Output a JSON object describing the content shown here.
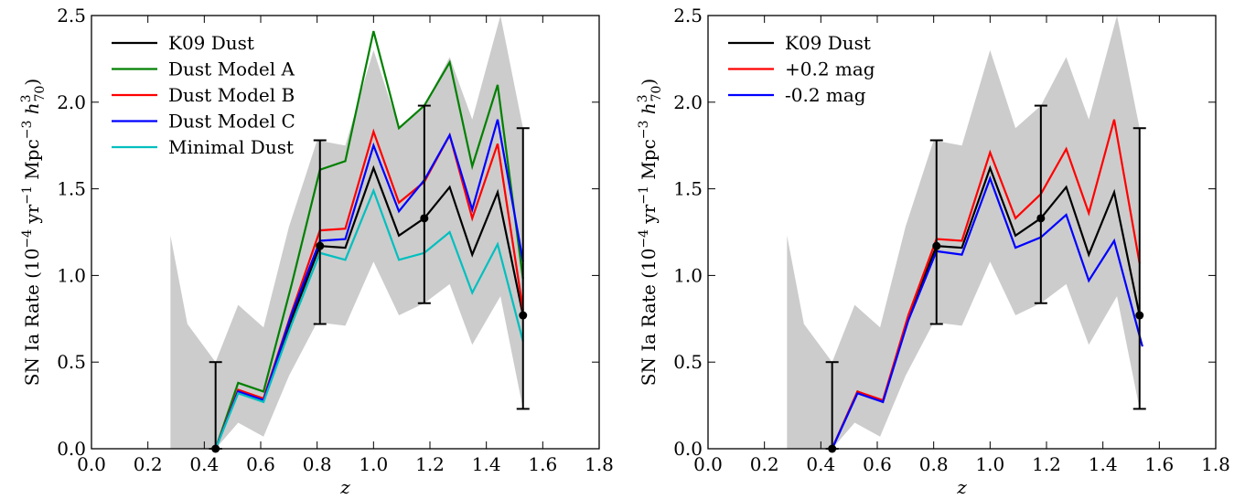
{
  "chart_data": [
    {
      "type": "line",
      "xlabel": "z",
      "ylabel_main": "SN Ia Rate (10",
      "ylabel_exp1": "−4",
      "ylabel_mid1": " yr",
      "ylabel_exp2": "−1",
      "ylabel_mid2": " Mpc",
      "ylabel_exp3": "−3",
      "ylabel_h": " h",
      "ylabel_hsup": "3",
      "ylabel_hsub": "70",
      "ylabel_close": ")",
      "xlim": [
        0.0,
        1.8
      ],
      "ylim": [
        0.0,
        2.5
      ],
      "xticks": [
        "0.0",
        "0.2",
        "0.4",
        "0.6",
        "0.8",
        "1.0",
        "1.2",
        "1.4",
        "1.6",
        "1.8"
      ],
      "yticks": [
        "0.0",
        "0.5",
        "1.0",
        "1.5",
        "2.0",
        "2.5"
      ],
      "legend_position": "upper-left",
      "band": {
        "x": [
          0.28,
          0.34,
          0.44,
          0.52,
          0.61,
          0.7,
          0.8,
          0.9,
          1.0,
          1.09,
          1.18,
          1.27,
          1.35,
          1.45,
          1.53
        ],
        "upper": [
          1.23,
          0.72,
          0.5,
          0.83,
          0.7,
          1.28,
          1.78,
          1.75,
          2.3,
          1.85,
          1.98,
          2.26,
          1.9,
          2.5,
          1.85
        ],
        "lower": [
          0.0,
          0.0,
          0.0,
          0.15,
          0.07,
          0.42,
          0.73,
          0.71,
          1.08,
          0.77,
          0.84,
          0.95,
          0.6,
          0.88,
          0.23
        ]
      },
      "series": [
        {
          "name": "K09 Dust",
          "color": "#000000",
          "x": [
            0.44,
            0.52,
            0.61,
            0.71,
            0.81,
            0.9,
            1.0,
            1.09,
            1.18,
            1.27,
            1.35,
            1.44,
            1.53
          ],
          "y": [
            0.0,
            0.33,
            0.28,
            0.75,
            1.17,
            1.16,
            1.62,
            1.23,
            1.33,
            1.51,
            1.12,
            1.48,
            0.77
          ]
        },
        {
          "name": "Dust Model A",
          "color": "#008000",
          "x": [
            0.44,
            0.52,
            0.61,
            0.71,
            0.81,
            0.9,
            1.0,
            1.09,
            1.18,
            1.27,
            1.35,
            1.44,
            1.53
          ],
          "y": [
            0.0,
            0.38,
            0.33,
            0.95,
            1.61,
            1.66,
            2.41,
            1.85,
            1.98,
            2.23,
            1.63,
            2.1,
            0.98
          ]
        },
        {
          "name": "Dust Model B",
          "color": "#ff0000",
          "x": [
            0.44,
            0.52,
            0.61,
            0.71,
            0.81,
            0.9,
            1.0,
            1.09,
            1.18,
            1.27,
            1.35,
            1.44,
            1.53
          ],
          "y": [
            0.0,
            0.34,
            0.29,
            0.79,
            1.26,
            1.27,
            1.83,
            1.42,
            1.54,
            1.81,
            1.33,
            1.76,
            0.8
          ]
        },
        {
          "name": "Dust Model C",
          "color": "#0000ff",
          "x": [
            0.44,
            0.52,
            0.61,
            0.71,
            0.81,
            0.9,
            1.0,
            1.09,
            1.18,
            1.27,
            1.35,
            1.44,
            1.53
          ],
          "y": [
            0.0,
            0.33,
            0.28,
            0.78,
            1.2,
            1.21,
            1.75,
            1.37,
            1.55,
            1.81,
            1.38,
            1.9,
            1.08
          ]
        },
        {
          "name": "Minimal Dust",
          "color": "#00bfbf",
          "x": [
            0.44,
            0.52,
            0.61,
            0.71,
            0.81,
            0.9,
            1.0,
            1.09,
            1.18,
            1.27,
            1.35,
            1.44,
            1.53
          ],
          "y": [
            0.0,
            0.32,
            0.27,
            0.72,
            1.13,
            1.09,
            1.49,
            1.09,
            1.13,
            1.25,
            0.9,
            1.18,
            0.62
          ]
        }
      ],
      "points": {
        "x": [
          0.44,
          0.81,
          1.18,
          1.53
        ],
        "y": [
          0.0,
          1.17,
          1.33,
          0.77
        ],
        "err_low": [
          0.0,
          0.72,
          0.84,
          0.23
        ],
        "err_high": [
          0.5,
          1.78,
          1.98,
          1.85
        ]
      }
    },
    {
      "type": "line",
      "xlabel": "z",
      "ylabel_main": "SN Ia Rate (10",
      "ylabel_exp1": "−4",
      "ylabel_mid1": " yr",
      "ylabel_exp2": "−1",
      "ylabel_mid2": " Mpc",
      "ylabel_exp3": "−3",
      "ylabel_h": " h",
      "ylabel_hsup": "3",
      "ylabel_hsub": "70",
      "ylabel_close": ")",
      "xlim": [
        0.0,
        1.8
      ],
      "ylim": [
        0.0,
        2.5
      ],
      "xticks": [
        "0.0",
        "0.2",
        "0.4",
        "0.6",
        "0.8",
        "1.0",
        "1.2",
        "1.4",
        "1.6",
        "1.8"
      ],
      "yticks": [
        "0.0",
        "0.5",
        "1.0",
        "1.5",
        "2.0",
        "2.5"
      ],
      "legend_position": "upper-left",
      "band": {
        "x": [
          0.28,
          0.34,
          0.44,
          0.52,
          0.61,
          0.7,
          0.8,
          0.9,
          1.0,
          1.09,
          1.18,
          1.27,
          1.35,
          1.45,
          1.53
        ],
        "upper": [
          1.23,
          0.72,
          0.5,
          0.83,
          0.7,
          1.28,
          1.78,
          1.75,
          2.3,
          1.85,
          1.98,
          2.26,
          1.9,
          2.5,
          1.85
        ],
        "lower": [
          0.0,
          0.0,
          0.0,
          0.15,
          0.07,
          0.42,
          0.73,
          0.71,
          1.08,
          0.77,
          0.84,
          0.95,
          0.6,
          0.88,
          0.23
        ]
      },
      "series": [
        {
          "name": "K09 Dust",
          "color": "#000000",
          "x": [
            0.44,
            0.53,
            0.62,
            0.71,
            0.81,
            0.9,
            1.0,
            1.09,
            1.18,
            1.27,
            1.35,
            1.44,
            1.53
          ],
          "y": [
            0.0,
            0.33,
            0.27,
            0.76,
            1.17,
            1.16,
            1.62,
            1.23,
            1.33,
            1.51,
            1.12,
            1.48,
            0.77
          ]
        },
        {
          "name": "+0.2 mag",
          "color": "#ff0000",
          "x": [
            0.44,
            0.53,
            0.62,
            0.71,
            0.81,
            0.9,
            1.0,
            1.09,
            1.18,
            1.27,
            1.35,
            1.44,
            1.53
          ],
          "y": [
            0.0,
            0.33,
            0.28,
            0.77,
            1.21,
            1.2,
            1.71,
            1.33,
            1.47,
            1.73,
            1.36,
            1.9,
            1.07
          ]
        },
        {
          "name": "-0.2 mag",
          "color": "#0000ff",
          "x": [
            0.44,
            0.53,
            0.62,
            0.71,
            0.81,
            0.9,
            1.0,
            1.09,
            1.18,
            1.27,
            1.35,
            1.44,
            1.54
          ],
          "y": [
            0.0,
            0.32,
            0.27,
            0.74,
            1.14,
            1.12,
            1.56,
            1.16,
            1.22,
            1.35,
            0.97,
            1.2,
            0.59
          ]
        }
      ],
      "points": {
        "x": [
          0.44,
          0.81,
          1.18,
          1.53
        ],
        "y": [
          0.0,
          1.17,
          1.33,
          0.77
        ],
        "err_low": [
          0.0,
          0.72,
          0.84,
          0.23
        ],
        "err_high": [
          0.5,
          1.78,
          1.98,
          1.85
        ]
      }
    }
  ]
}
